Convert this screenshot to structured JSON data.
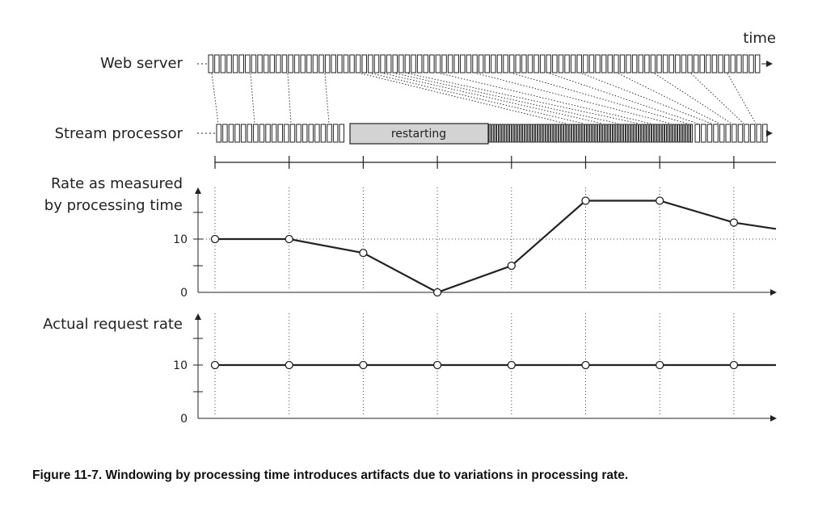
{
  "figure": {
    "time_label": "time",
    "web_server_label": "Web server",
    "stream_processor_label": "Stream processor",
    "restarting_label": "restarting",
    "caption": "Figure 11-7. Windowing by processing time introduces artifacts due to variations in processing rate."
  },
  "chart_data": [
    {
      "type": "line",
      "title": "Rate as measured by processing time",
      "title_lines": [
        "Rate as measured",
        "by processing time"
      ],
      "yticks": [
        "10",
        "0"
      ],
      "ylim": [
        0,
        20
      ],
      "x": [
        0,
        1,
        2,
        3,
        4,
        5,
        6,
        7
      ],
      "values": [
        10,
        10,
        7.4,
        0,
        5,
        17.2,
        17.2,
        13.1
      ],
      "trailing_value": 11.9,
      "reference_line": 10,
      "grid": "dotted verticals"
    },
    {
      "type": "line",
      "title": "Actual request rate",
      "yticks": [
        "10",
        "0"
      ],
      "ylim": [
        0,
        20
      ],
      "x": [
        0,
        1,
        2,
        3,
        4,
        5,
        6,
        7
      ],
      "values": [
        10,
        10,
        10,
        10,
        10,
        10,
        10,
        10
      ],
      "grid": "dotted verticals"
    }
  ]
}
